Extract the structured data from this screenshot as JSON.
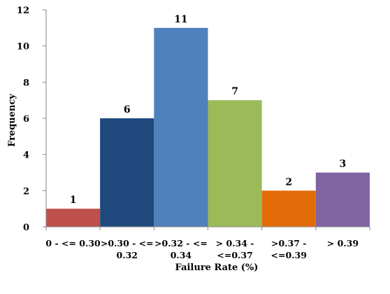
{
  "chart_data": {
    "type": "bar",
    "categories": [
      [
        "0 - <= 0.30"
      ],
      [
        ">0.30 - <=",
        "0.32"
      ],
      [
        ">0.32 - <=",
        "0.34"
      ],
      [
        "> 0.34 -",
        "<=0.37"
      ],
      [
        ">0.37 -",
        "<=0.39"
      ],
      [
        "> 0.39"
      ]
    ],
    "values": [
      1,
      6,
      11,
      7,
      2,
      3
    ],
    "data_labels": [
      "1",
      "6",
      "11",
      "7",
      "2",
      "3"
    ],
    "colors": [
      "#c0504d",
      "#1f497d",
      "#4f81bd",
      "#9bbb59",
      "#e36c09",
      "#8064a2"
    ],
    "xlabel": "Failure Rate (%)",
    "ylabel": "Frequency",
    "ylim": [
      0,
      12
    ],
    "yticks": [
      0,
      2,
      4,
      6,
      8,
      10,
      12
    ],
    "grid": false,
    "legend": "none"
  }
}
